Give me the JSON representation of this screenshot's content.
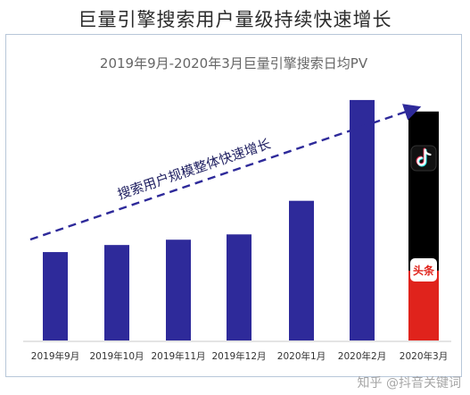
{
  "header": {
    "title": "巨量引擎搜索用户量级持续快速增长"
  },
  "watermark": "知乎 @抖音关键词",
  "icons": [
    "douyin-logo",
    "toutiao-logo"
  ],
  "chart_data": {
    "type": "bar",
    "title": "2019年9月-2020年3月巨量引擎搜索日均PV",
    "categories": [
      "2019年9月",
      "2019年10月",
      "2019年11月",
      "2019年12月",
      "2020年1月",
      "2020年2月",
      "2020年3月"
    ],
    "values": [
      100,
      108,
      114,
      120,
      158,
      272,
      259
    ],
    "stacked_last": {
      "douyin": 180,
      "toutiao": 79
    },
    "xlabel": "",
    "ylabel": "",
    "ylim": [
      0,
      280
    ],
    "annotation": "搜索用户规模整体快速增长",
    "grid": false,
    "colors": {
      "bar": "#2e2a9a",
      "douyin": "#000000",
      "toutiao": "#e0231c",
      "trend": "#2e2a9a",
      "axis": "#c8c8c8"
    }
  }
}
